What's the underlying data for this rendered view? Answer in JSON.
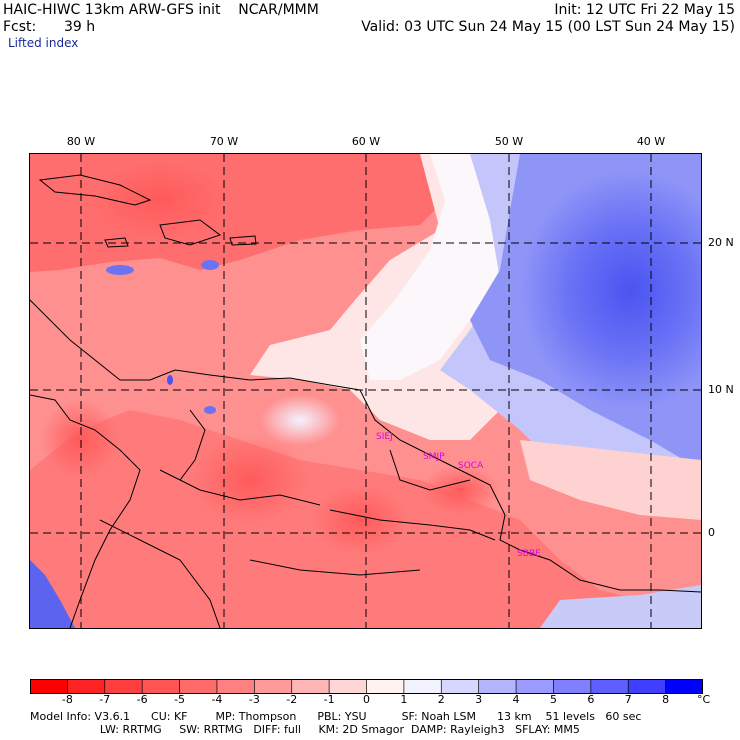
{
  "header": {
    "model_title": "HAIC-HIWC 13km ARW-GFS init    NCAR/MMM",
    "init": "Init: 12 UTC Fri 22 May 15",
    "fcst_label": "Fcst:",
    "fcst_value": "39 h",
    "valid": "Valid: 03 UTC Sun 24 May 15 (00 LST Sun 24 May 15)",
    "field": "Lifted index"
  },
  "map": {
    "longitude_labels": [
      "80 W",
      "70 W",
      "60 W",
      "50 W",
      "40 W"
    ],
    "latitude_labels": [
      "20 N",
      "10 N",
      "0"
    ],
    "station_labels": [
      "SIEJ",
      "SMJP",
      "SOCA",
      "SBBE"
    ],
    "colors": {
      "station": "#e000e0",
      "negative_strong": "#ff0000",
      "neutral": "#ffffff",
      "positive_strong": "#0000ff"
    }
  },
  "colorbar": {
    "ticks": [
      "-8",
      "-7",
      "-6",
      "-5",
      "-4",
      "-3",
      "-2",
      "-1",
      "0",
      "1",
      "2",
      "3",
      "4",
      "5",
      "6",
      "7",
      "8"
    ],
    "unit": "°C",
    "colors": [
      "#ff0000",
      "#ff2222",
      "#ff3f3f",
      "#ff5555",
      "#ff6b6b",
      "#ff8080",
      "#ff9a9a",
      "#ffb5b5",
      "#ffd6d6",
      "#fff2f2",
      "#f2f2ff",
      "#d6d6ff",
      "#b5b5ff",
      "#9a9aff",
      "#8080ff",
      "#5f5fff",
      "#3f3fff",
      "#0000ff"
    ]
  },
  "model_info": {
    "line1": "Model Info: V3.6.1      CU: KF        MP: Thompson      PBL: YSU          SF: Noah LSM      13 km    51 levels   60 sec",
    "line2": "                    LW: RRTMG     SW: RRTMG   DIFF: full     KM: 2D Smagor  DAMP: Rayleigh3   SFLAY: MM5"
  }
}
